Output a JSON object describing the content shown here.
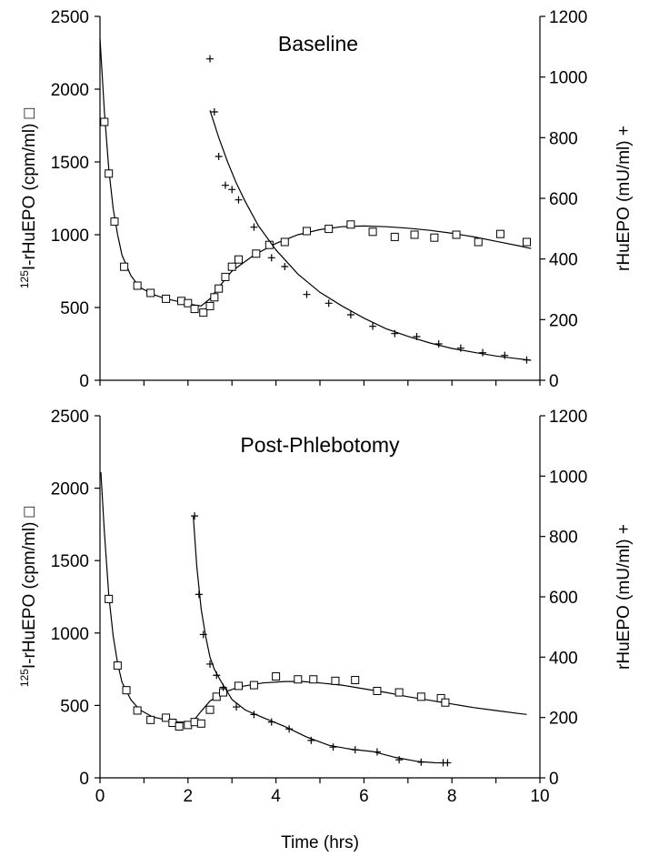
{
  "chart_data": [
    {
      "type": "scatter",
      "title": "Baseline",
      "xlim": [
        0,
        10
      ],
      "ylim_left": [
        0,
        2500
      ],
      "ylim_right": [
        0,
        1200
      ],
      "yticks_left": [
        "0",
        "500",
        "1000",
        "1500",
        "2000",
        "2500"
      ],
      "yticks_right": [
        "0",
        "200",
        "400",
        "600",
        "800",
        "1000",
        "1200"
      ],
      "ylabel_left_sup": "125",
      "ylabel_left": "I-rHuEPO (cpm/ml) □",
      "ylabel_right": "rHuEPO (mU/ml) +",
      "series": [
        {
          "axis": "left",
          "marker": "square",
          "points": [
            [
              0.1,
              1775
            ],
            [
              0.2,
              1420
            ],
            [
              0.33,
              1090
            ],
            [
              0.55,
              780
            ],
            [
              0.85,
              650
            ],
            [
              1.15,
              600
            ],
            [
              1.5,
              560
            ],
            [
              1.85,
              545
            ],
            [
              2.0,
              530
            ],
            [
              2.15,
              490
            ],
            [
              2.35,
              465
            ],
            [
              2.5,
              510
            ],
            [
              2.6,
              570
            ],
            [
              2.7,
              630
            ],
            [
              2.85,
              710
            ],
            [
              3.0,
              780
            ],
            [
              3.15,
              830
            ],
            [
              3.55,
              870
            ],
            [
              3.85,
              930
            ],
            [
              4.2,
              950
            ],
            [
              4.7,
              1025
            ],
            [
              5.2,
              1040
            ],
            [
              5.7,
              1070
            ],
            [
              6.2,
              1020
            ],
            [
              6.7,
              985
            ],
            [
              7.15,
              1000
            ],
            [
              7.6,
              980
            ],
            [
              8.1,
              1000
            ],
            [
              8.6,
              950
            ],
            [
              9.1,
              1005
            ],
            [
              9.7,
              950
            ]
          ],
          "fit": [
            [
              0,
              2350
            ],
            [
              0.1,
              1850
            ],
            [
              0.2,
              1450
            ],
            [
              0.3,
              1180
            ],
            [
              0.4,
              1000
            ],
            [
              0.5,
              860
            ],
            [
              0.7,
              720
            ],
            [
              0.9,
              640
            ],
            [
              1.2,
              590
            ],
            [
              1.5,
              560
            ],
            [
              1.8,
              540
            ],
            [
              2.1,
              520
            ],
            [
              2.3,
              510
            ],
            [
              2.5,
              560
            ],
            [
              2.7,
              640
            ],
            [
              3.0,
              750
            ],
            [
              3.5,
              860
            ],
            [
              4.0,
              940
            ],
            [
              4.5,
              1000
            ],
            [
              5.0,
              1035
            ],
            [
              5.5,
              1055
            ],
            [
              6.0,
              1060
            ],
            [
              6.5,
              1055
            ],
            [
              7.0,
              1045
            ],
            [
              7.5,
              1030
            ],
            [
              8.0,
              1010
            ],
            [
              8.5,
              985
            ],
            [
              9.0,
              955
            ],
            [
              9.5,
              925
            ],
            [
              9.8,
              905
            ]
          ]
        },
        {
          "axis": "right",
          "marker": "plus",
          "points": [
            [
              2.5,
              1060
            ],
            [
              2.6,
              885
            ],
            [
              2.7,
              738
            ],
            [
              2.85,
              643
            ],
            [
              3.0,
              629
            ],
            [
              3.15,
              595
            ],
            [
              3.5,
              505
            ],
            [
              3.9,
              404
            ],
            [
              4.2,
              375
            ],
            [
              4.7,
              283
            ],
            [
              5.2,
              254
            ],
            [
              5.7,
              216
            ],
            [
              6.2,
              178
            ],
            [
              6.7,
              154
            ],
            [
              7.2,
              144
            ],
            [
              7.7,
              120
            ],
            [
              8.2,
              106
            ],
            [
              8.7,
              91
            ],
            [
              9.2,
              82
            ],
            [
              9.7,
              67
            ]
          ],
          "fit": [
            [
              2.5,
              890
            ],
            [
              2.7,
              800
            ],
            [
              2.9,
              720
            ],
            [
              3.1,
              650
            ],
            [
              3.3,
              590
            ],
            [
              3.6,
              510
            ],
            [
              4.0,
              430
            ],
            [
              4.5,
              350
            ],
            [
              5.0,
              290
            ],
            [
              5.5,
              245
            ],
            [
              6.0,
              205
            ],
            [
              6.5,
              170
            ],
            [
              7.0,
              145
            ],
            [
              7.5,
              123
            ],
            [
              8.0,
              105
            ],
            [
              8.5,
              92
            ],
            [
              9.0,
              80
            ],
            [
              9.5,
              71
            ],
            [
              9.8,
              66
            ]
          ]
        }
      ]
    },
    {
      "type": "scatter",
      "title": "Post-Phlebotomy",
      "xlabel": "Time (hrs)",
      "xlim": [
        0,
        10
      ],
      "xticks": [
        "0",
        "2",
        "4",
        "6",
        "8",
        "10"
      ],
      "ylim_left": [
        0,
        2500
      ],
      "ylim_right": [
        0,
        1200
      ],
      "yticks_left": [
        "0",
        "500",
        "1000",
        "1500",
        "2000",
        "2500"
      ],
      "yticks_right": [
        "0",
        "200",
        "400",
        "600",
        "800",
        "1000",
        "1200"
      ],
      "ylabel_left_sup": "125",
      "ylabel_left": "I-rHuEPO (cpm/ml) □",
      "ylabel_right": "rHuEPO (mU/ml) +",
      "series": [
        {
          "axis": "left",
          "marker": "square",
          "points": [
            [
              0.2,
              1235
            ],
            [
              0.4,
              775
            ],
            [
              0.6,
              605
            ],
            [
              0.85,
              465
            ],
            [
              1.15,
              400
            ],
            [
              1.5,
              415
            ],
            [
              1.65,
              380
            ],
            [
              1.8,
              355
            ],
            [
              2.0,
              365
            ],
            [
              2.15,
              385
            ],
            [
              2.3,
              375
            ],
            [
              2.5,
              470
            ],
            [
              2.65,
              560
            ],
            [
              2.8,
              590
            ],
            [
              3.15,
              635
            ],
            [
              3.5,
              640
            ],
            [
              4.0,
              700
            ],
            [
              4.5,
              680
            ],
            [
              4.85,
              680
            ],
            [
              5.35,
              670
            ],
            [
              5.8,
              675
            ],
            [
              6.3,
              600
            ],
            [
              6.8,
              590
            ],
            [
              7.3,
              560
            ],
            [
              7.75,
              550
            ],
            [
              7.85,
              520
            ]
          ],
          "fit": [
            [
              0.02,
              2110
            ],
            [
              0.1,
              1700
            ],
            [
              0.2,
              1260
            ],
            [
              0.3,
              980
            ],
            [
              0.4,
              790
            ],
            [
              0.5,
              660
            ],
            [
              0.7,
              540
            ],
            [
              0.9,
              470
            ],
            [
              1.2,
              420
            ],
            [
              1.5,
              400
            ],
            [
              1.8,
              385
            ],
            [
              2.1,
              385
            ],
            [
              2.3,
              460
            ],
            [
              2.5,
              530
            ],
            [
              2.8,
              590
            ],
            [
              3.2,
              630
            ],
            [
              3.7,
              655
            ],
            [
              4.2,
              665
            ],
            [
              4.6,
              665
            ],
            [
              5.0,
              655
            ],
            [
              5.5,
              640
            ],
            [
              6.0,
              615
            ],
            [
              6.5,
              590
            ],
            [
              7.0,
              560
            ],
            [
              7.5,
              535
            ],
            [
              8.0,
              510
            ],
            [
              8.5,
              485
            ],
            [
              9.0,
              465
            ],
            [
              9.5,
              445
            ],
            [
              9.7,
              438
            ]
          ]
        },
        {
          "axis": "right",
          "marker": "plus",
          "points": [
            [
              2.15,
              868
            ],
            [
              2.25,
              608
            ],
            [
              2.35,
              475
            ],
            [
              2.5,
              377
            ],
            [
              2.65,
              340
            ],
            [
              2.8,
              300
            ],
            [
              3.1,
              235
            ],
            [
              3.5,
              210
            ],
            [
              3.9,
              185
            ],
            [
              4.3,
              162
            ],
            [
              4.8,
              124
            ],
            [
              5.3,
              102
            ],
            [
              5.8,
              93
            ],
            [
              6.3,
              86
            ],
            [
              6.8,
              60
            ],
            [
              7.3,
              52
            ],
            [
              7.8,
              50
            ],
            [
              7.9,
              50
            ]
          ],
          "fit": [
            [
              2.12,
              870
            ],
            [
              2.2,
              700
            ],
            [
              2.3,
              560
            ],
            [
              2.4,
              470
            ],
            [
              2.5,
              400
            ],
            [
              2.6,
              360
            ],
            [
              2.75,
              320
            ],
            [
              3.0,
              260
            ],
            [
              3.3,
              225
            ],
            [
              3.7,
              200
            ],
            [
              4.2,
              170
            ],
            [
              4.7,
              135
            ],
            [
              5.2,
              108
            ],
            [
              5.7,
              95
            ],
            [
              6.2,
              87
            ],
            [
              6.7,
              68
            ],
            [
              7.2,
              55
            ],
            [
              7.6,
              50
            ],
            [
              7.9,
              49
            ]
          ]
        }
      ]
    }
  ]
}
